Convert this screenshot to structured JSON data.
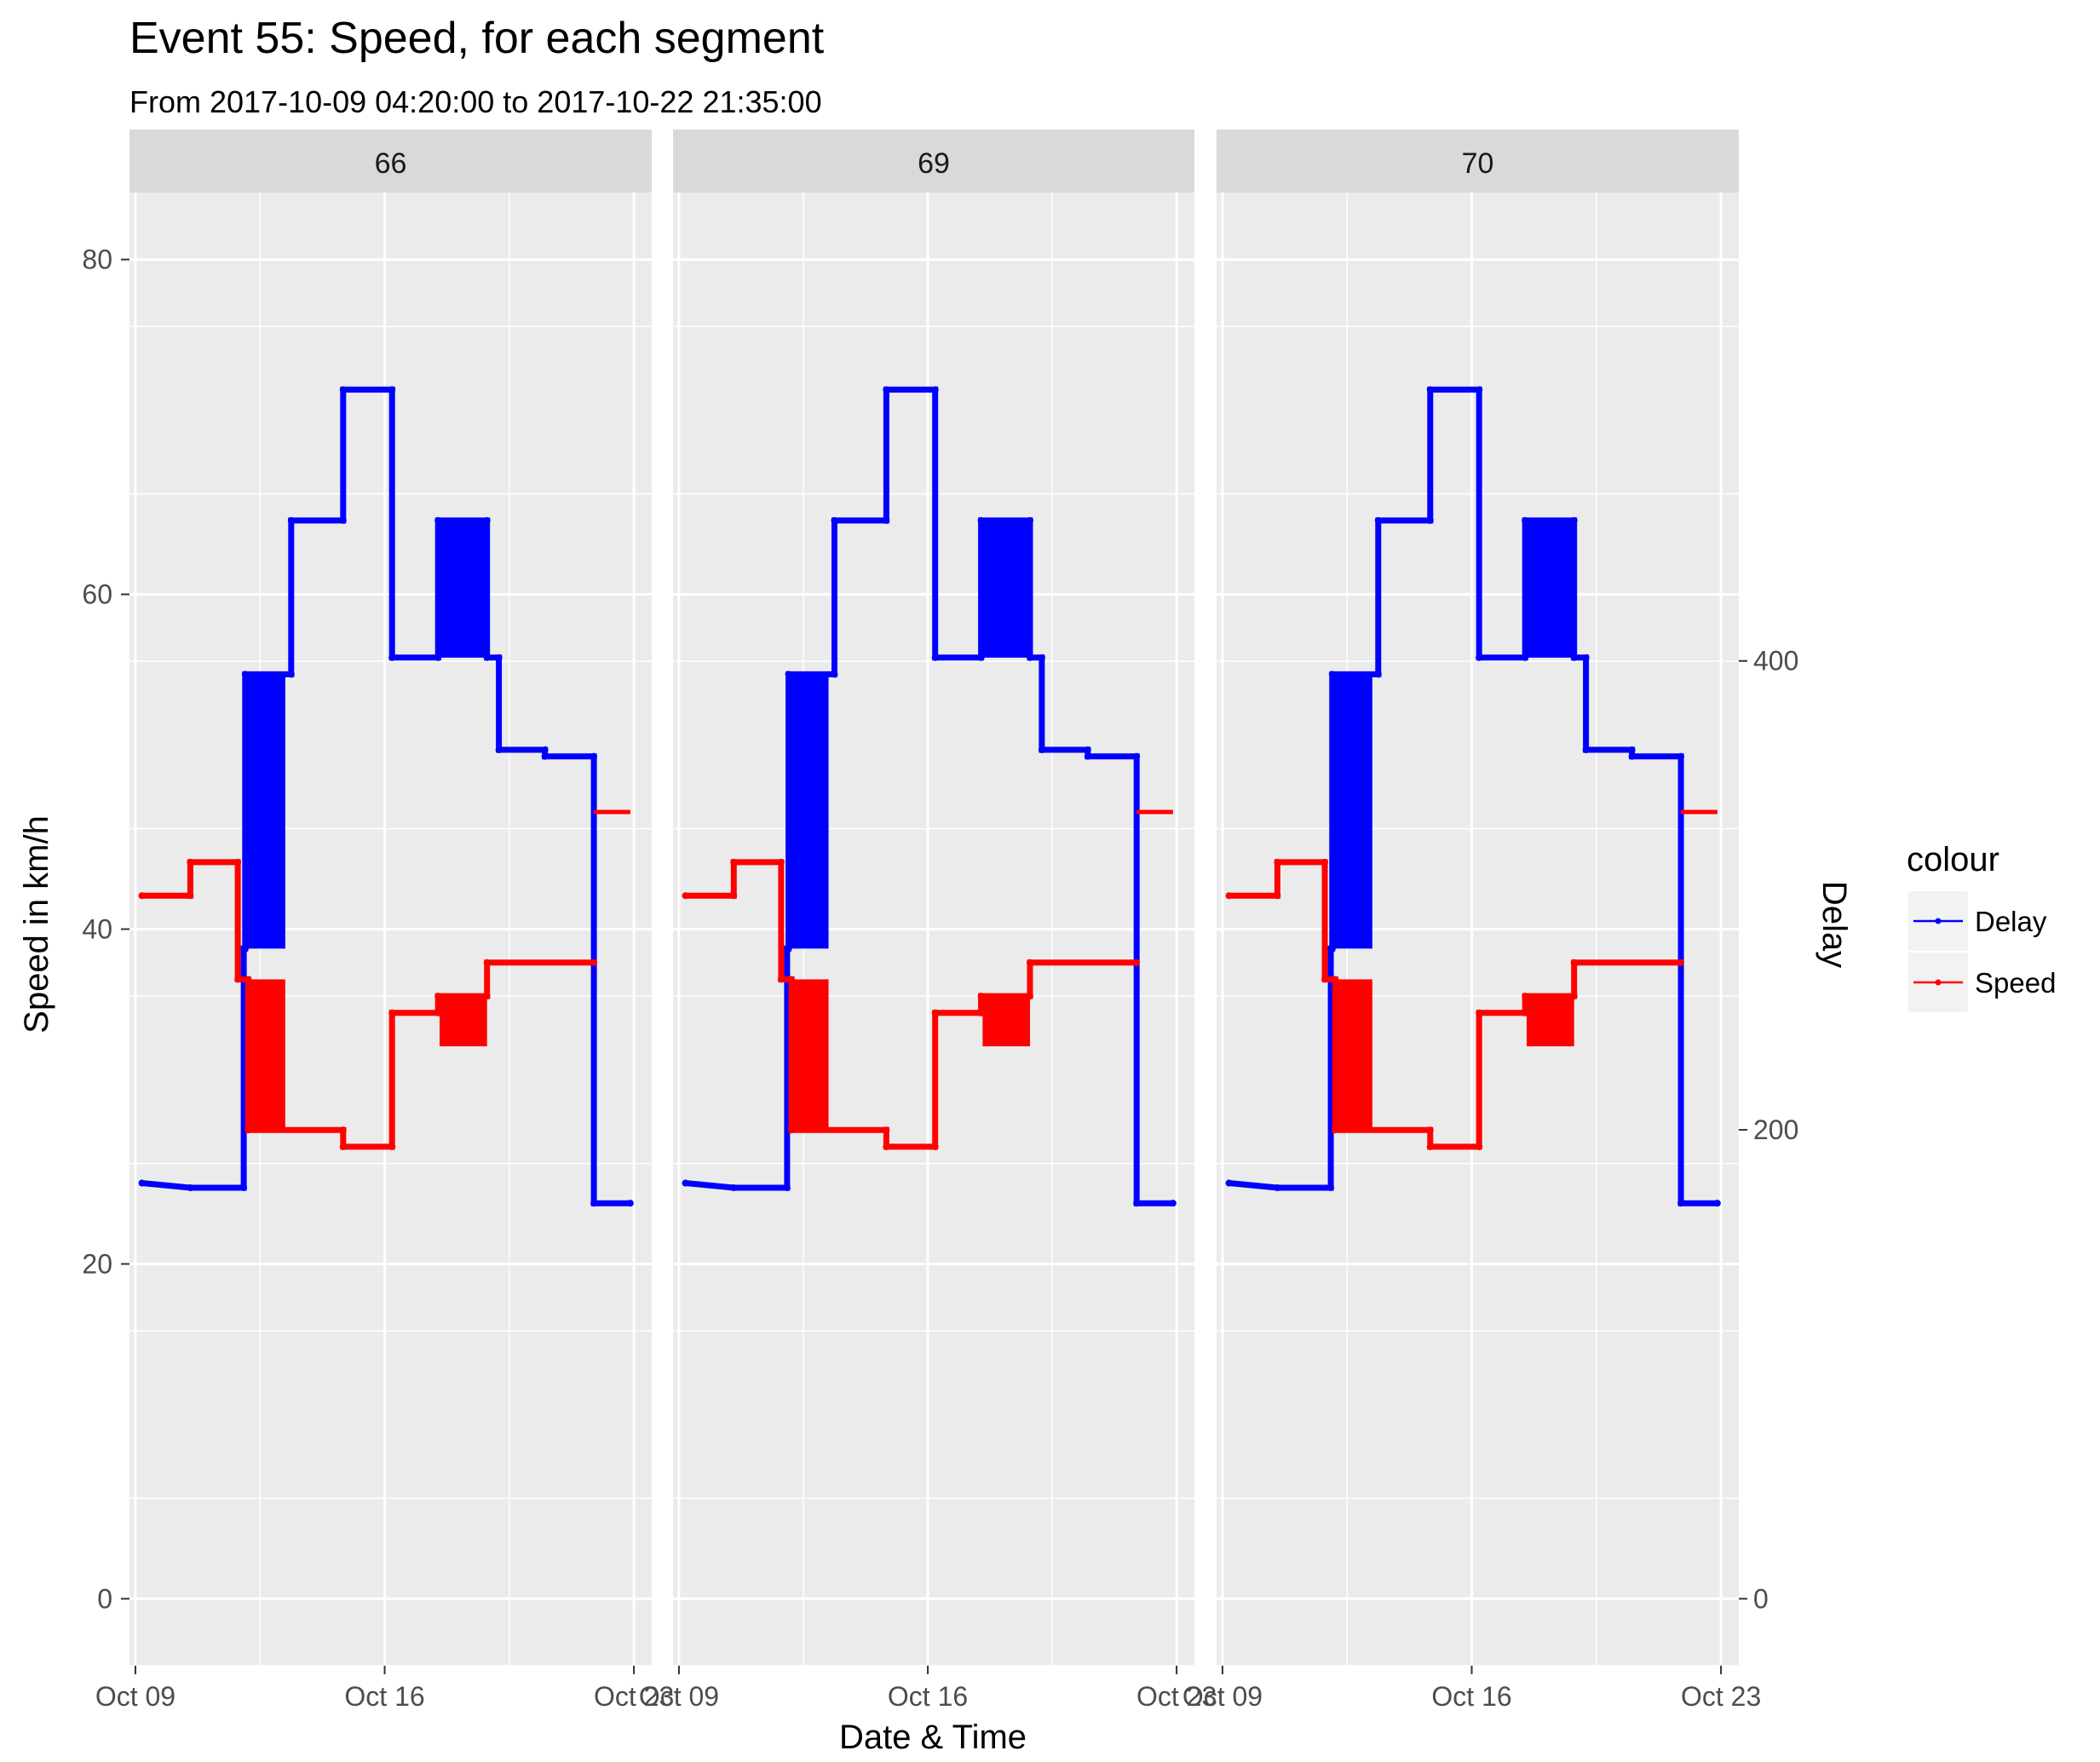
{
  "chart_data": {
    "type": "line",
    "title": "Event 55: Speed, for each segment",
    "subtitle": "From 2017-10-09 04:20:00 to 2017-10-22 21:35:00",
    "xlabel": "Date & Time",
    "ylabel": "Speed in km/h",
    "y2label": "Delay",
    "x_tick_labels": [
      "Oct 09",
      "Oct 16",
      "Oct 23"
    ],
    "x_ticks": [
      "2017-10-09",
      "2017-10-16",
      "2017-10-23"
    ],
    "xlim": [
      "2017-10-08 20:00",
      "2017-10-23 12:00"
    ],
    "y_ticks": [
      0,
      20,
      40,
      60,
      80
    ],
    "ylim": [
      -4,
      84
    ],
    "y2_ticks": [
      0,
      200,
      400
    ],
    "y2_scale_note": "Delay = Speed * 7.14",
    "facets": [
      "66",
      "69",
      "70"
    ],
    "legend": {
      "title": "colour",
      "placement": "right",
      "entries": [
        {
          "label": "Delay",
          "color": "#0000ff"
        },
        {
          "label": "Speed",
          "color": "#ff0000"
        }
      ]
    },
    "series": [
      {
        "name": "Delay",
        "color": "#0000ff",
        "points": [
          [
            "2017-10-09 04:20",
            177.3
          ],
          [
            "2017-10-10 13:00",
            175.3
          ],
          [
            "2017-10-12 01:00",
            175.3
          ],
          [
            "2017-10-12 01:00",
            277.3
          ],
          [
            "2017-10-12 02:00",
            277.3
          ],
          [
            "2017-10-12 02:00",
            394.3
          ],
          [
            "2017-10-13 09:00",
            394.3
          ],
          [
            "2017-10-13 09:00",
            459.9
          ],
          [
            "2017-10-14 20:00",
            459.9
          ],
          [
            "2017-10-14 20:00",
            515.7
          ],
          [
            "2017-10-16 05:00",
            515.7
          ],
          [
            "2017-10-16 05:00",
            401.4
          ],
          [
            "2017-10-17 12:00",
            401.4
          ],
          [
            "2017-10-17 12:00",
            459.9
          ],
          [
            "2017-10-18 21:00",
            459.9
          ],
          [
            "2017-10-18 21:00",
            401.4
          ],
          [
            "2017-10-19 05:00",
            401.4
          ],
          [
            "2017-10-19 05:00",
            362.1
          ],
          [
            "2017-10-20 12:00",
            362.1
          ],
          [
            "2017-10-20 12:00",
            359.3
          ],
          [
            "2017-10-21 21:00",
            359.3
          ],
          [
            "2017-10-21 21:00",
            168.7
          ],
          [
            "2017-10-22 21:35",
            168.7
          ]
        ],
        "bands": [
          {
            "from": "2017-10-12 02:00",
            "to": "2017-10-13 05:00",
            "low": 277.3,
            "high": 394.3
          },
          {
            "from": "2017-10-17 13:00",
            "to": "2017-10-18 21:00",
            "low": 401.4,
            "high": 459.9
          }
        ]
      },
      {
        "name": "Speed",
        "color": "#ff0000",
        "points": [
          [
            "2017-10-09 04:20",
            42
          ],
          [
            "2017-10-10 13:00",
            42
          ],
          [
            "2017-10-10 13:00",
            44
          ],
          [
            "2017-10-11 21:00",
            44
          ],
          [
            "2017-10-11 21:00",
            37
          ],
          [
            "2017-10-12 04:00",
            37
          ],
          [
            "2017-10-12 04:00",
            28
          ],
          [
            "2017-10-14 20:00",
            28
          ],
          [
            "2017-10-14 20:00",
            27
          ],
          [
            "2017-10-16 05:00",
            27
          ],
          [
            "2017-10-16 05:00",
            35
          ],
          [
            "2017-10-17 12:00",
            35
          ],
          [
            "2017-10-17 12:00",
            36
          ],
          [
            "2017-10-18 21:00",
            36
          ],
          [
            "2017-10-18 21:00",
            38
          ],
          [
            "2017-10-21 21:00",
            38
          ]
        ],
        "extra_segments": [
          [
            [
              "2017-10-21 21:00",
              47
            ],
            [
              "2017-10-22 21:35",
              47
            ]
          ]
        ],
        "bands": [
          {
            "from": "2017-10-12 04:00",
            "to": "2017-10-13 05:00",
            "low": 28,
            "high": 37
          },
          {
            "from": "2017-10-17 13:00",
            "to": "2017-10-18 21:00",
            "low": 33,
            "high": 36
          }
        ]
      }
    ]
  }
}
